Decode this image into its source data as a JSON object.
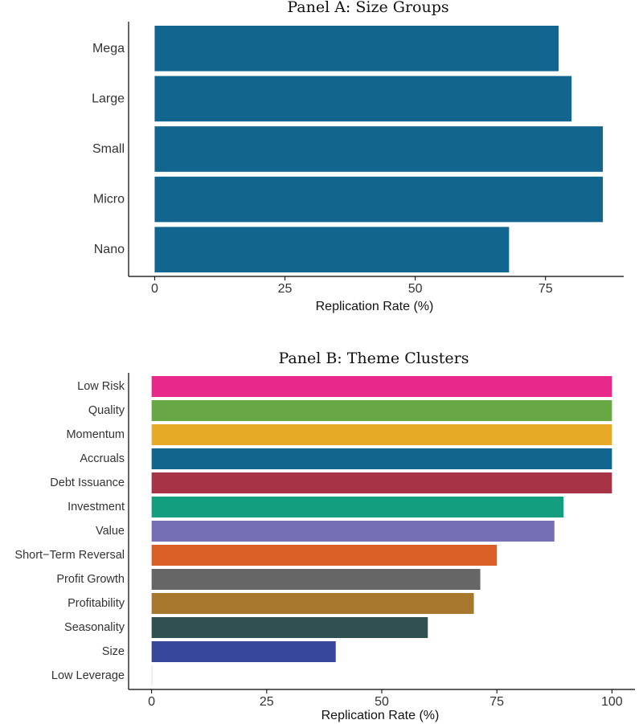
{
  "chart_data": [
    {
      "type": "bar",
      "orientation": "horizontal",
      "title": "Panel A: Size Groups",
      "xlabel": "Replication Rate (%)",
      "ylabel": "",
      "xlim": [
        -5,
        90
      ],
      "xticks": [
        0,
        25,
        50,
        75
      ],
      "tick_labels": [
        "0",
        "25",
        "50",
        "75"
      ],
      "categories": [
        "Mega",
        "Large",
        "Small",
        "Micro",
        "Nano"
      ],
      "values": [
        77.5,
        80,
        86,
        86,
        68
      ],
      "colors": [
        "#11658f",
        "#11658f",
        "#11658f",
        "#11658f",
        "#11658f"
      ],
      "grid": false,
      "legend": "none"
    },
    {
      "type": "bar",
      "orientation": "horizontal",
      "title": "Panel B: Theme Clusters",
      "xlabel": "Replication Rate (%)",
      "ylabel": "",
      "xlim": [
        -5,
        105
      ],
      "xticks": [
        0,
        25,
        50,
        75,
        100
      ],
      "tick_labels": [
        "0",
        "25",
        "50",
        "75",
        "100"
      ],
      "categories": [
        "Low Risk",
        "Quality",
        "Momentum",
        "Accruals",
        "Debt Issuance",
        "Investment",
        "Value",
        "Short−Term Reversal",
        "Profit Growth",
        "Profitability",
        "Seasonality",
        "Size",
        "Low Leverage"
      ],
      "values": [
        100,
        100,
        100,
        100,
        100,
        89.5,
        87.5,
        75,
        71.4,
        70,
        60,
        40,
        0
      ],
      "colors": [
        "#e8298a",
        "#67a744",
        "#e6a928",
        "#11658f",
        "#a63446",
        "#129e7f",
        "#7570b5",
        "#da5f27",
        "#666666",
        "#a6772d",
        "#2f514f",
        "#37479c",
        "#f2d4e4"
      ],
      "grid": false,
      "legend": "none"
    }
  ]
}
